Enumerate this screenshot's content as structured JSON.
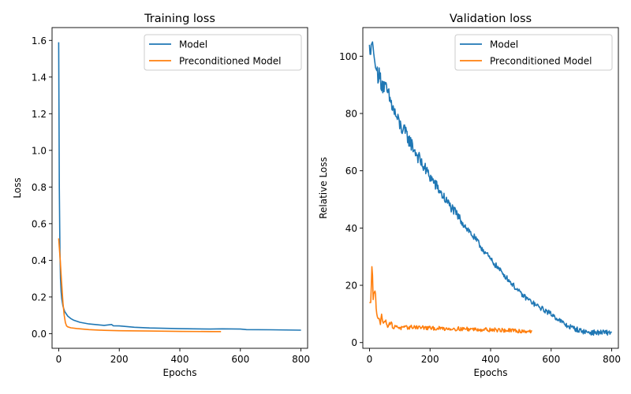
{
  "chart_data": [
    {
      "type": "line",
      "title": "Training loss",
      "xlabel": "Epochs",
      "ylabel": "Loss",
      "xlim": [
        -22,
        822
      ],
      "ylim": [
        -0.08,
        1.67
      ],
      "xticks": [
        0,
        200,
        400,
        600,
        800
      ],
      "yticks": [
        0.0,
        0.2,
        0.4,
        0.6,
        0.8,
        1.0,
        1.2,
        1.4,
        1.6
      ],
      "ytick_labels": [
        "0.0",
        "0.2",
        "0.4",
        "0.6",
        "0.8",
        "1.0",
        "1.2",
        "1.4",
        "1.6"
      ],
      "legend": "top-right",
      "grid": false,
      "series": [
        {
          "name": "Model",
          "color": "#1f77b4",
          "x": [
            0,
            2,
            4,
            6,
            8,
            10,
            14,
            20,
            30,
            40,
            50,
            70,
            100,
            120,
            150,
            175,
            180,
            200,
            250,
            300,
            400,
            500,
            540,
            600,
            620,
            700,
            800
          ],
          "y": [
            1.59,
            0.8,
            0.45,
            0.3,
            0.23,
            0.19,
            0.15,
            0.12,
            0.095,
            0.082,
            0.073,
            0.062,
            0.053,
            0.05,
            0.045,
            0.05,
            0.043,
            0.042,
            0.035,
            0.031,
            0.027,
            0.025,
            0.026,
            0.025,
            0.022,
            0.021,
            0.019
          ]
        },
        {
          "name": "Preconditioned Model",
          "color": "#ff7f0e",
          "x": [
            0,
            2,
            5,
            8,
            11,
            14,
            18,
            22,
            26,
            30,
            40,
            60,
            100,
            150,
            200,
            300,
            400,
            500,
            536
          ],
          "y": [
            0.52,
            0.47,
            0.4,
            0.32,
            0.24,
            0.17,
            0.1,
            0.06,
            0.042,
            0.037,
            0.032,
            0.028,
            0.022,
            0.018,
            0.016,
            0.014,
            0.012,
            0.011,
            0.011
          ]
        }
      ]
    },
    {
      "type": "line",
      "title": "Validation loss",
      "xlabel": "Epochs",
      "ylabel": "Relative Loss",
      "xlim": [
        -22,
        822
      ],
      "ylim": [
        -2,
        110
      ],
      "xticks": [
        0,
        200,
        400,
        600,
        800
      ],
      "yticks": [
        0,
        20,
        40,
        60,
        80,
        100
      ],
      "ytick_labels": [
        "0",
        "20",
        "40",
        "60",
        "80",
        "100"
      ],
      "legend": "top-right",
      "grid": false,
      "series": [
        {
          "name": "Model",
          "color": "#1f77b4",
          "noise": 0.9,
          "x": [
            0,
            3,
            6,
            10,
            15,
            20,
            40,
            60,
            80,
            100,
            125,
            150,
            175,
            200,
            250,
            300,
            350,
            400,
            450,
            500,
            550,
            600,
            650,
            700,
            730,
            760,
            800
          ],
          "y": [
            104,
            99,
            104,
            105,
            100,
            96,
            91,
            87,
            81,
            76,
            72,
            67,
            62,
            58,
            50,
            43,
            36,
            29,
            23,
            17,
            13,
            10,
            6,
            4,
            3.5,
            3.5,
            3.5
          ]
        },
        {
          "name": "Preconditioned Model",
          "color": "#ff7f0e",
          "noise": 0.7,
          "x": [
            0,
            4,
            7,
            9,
            11,
            13,
            15,
            17,
            19,
            21,
            23,
            25,
            28,
            32,
            36,
            40,
            45,
            50,
            60,
            70,
            80,
            90,
            100,
            150,
            200,
            300,
            400,
            500,
            536
          ],
          "y": [
            14,
            14,
            22,
            31,
            16,
            14,
            20,
            15,
            21,
            13,
            11,
            9,
            8,
            9,
            7,
            10,
            6,
            8,
            6,
            7,
            5,
            6,
            5,
            5.5,
            5,
            4.8,
            4.5,
            4,
            4
          ]
        }
      ]
    }
  ]
}
